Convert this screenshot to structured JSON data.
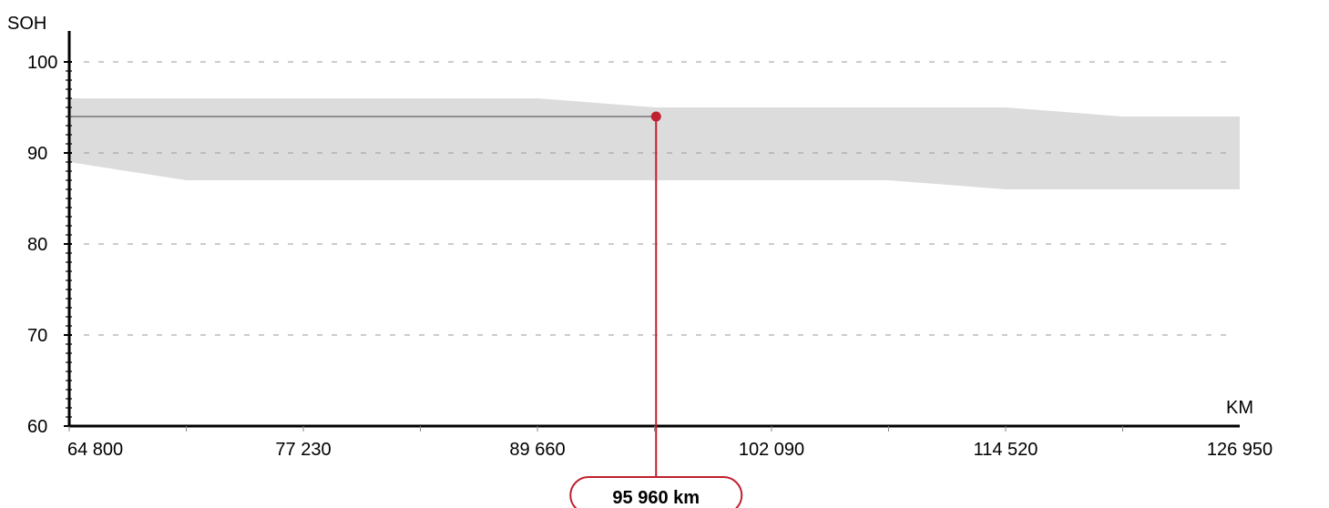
{
  "chart_data": {
    "type": "area",
    "ylabel": "SOH",
    "xlabel": "KM",
    "xlim": [
      64800,
      126950
    ],
    "ylim": [
      60,
      100
    ],
    "x_ticks": [
      64800,
      77230,
      89660,
      102090,
      114520,
      126950
    ],
    "x_tick_labels": [
      "64 800",
      "77 230",
      "89 660",
      "102 090",
      "114 520",
      "126 950"
    ],
    "y_ticks": [
      60,
      70,
      80,
      90,
      100
    ],
    "y_tick_labels": [
      "60",
      "70",
      "80",
      "90",
      "100"
    ],
    "grid": "horizontal dashed",
    "band": {
      "x": [
        64800,
        71015,
        89660,
        95960,
        102090,
        108305,
        114520,
        120735,
        126950
      ],
      "upper": [
        96,
        96,
        96,
        95,
        95,
        95,
        95,
        94,
        94
      ],
      "lower": [
        89,
        87,
        87,
        87,
        87,
        87,
        86,
        86,
        86
      ]
    },
    "marker": {
      "x": 95960,
      "y": 94,
      "label": "95 960 km"
    },
    "colors": {
      "band": "#dcdcdc",
      "marker": "#c0202f",
      "axis": "#000000",
      "grid": "#9a9a9a"
    }
  }
}
